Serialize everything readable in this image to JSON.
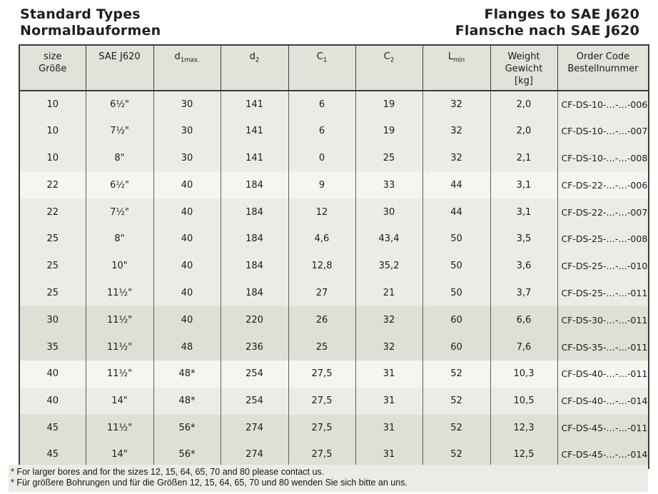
{
  "titles": {
    "left1": "Standard Types",
    "left2": "Normalbauformen",
    "right1": "Flanges to SAE J620",
    "right2": "Flansche nach SAE J620"
  },
  "table": {
    "columns": [
      {
        "line1": "size",
        "line2": "Größe"
      },
      {
        "line1": "SAE J620"
      },
      {
        "base": "d",
        "sub": "1max."
      },
      {
        "base": "d",
        "sub": "2"
      },
      {
        "base": "C",
        "sub": "1"
      },
      {
        "base": "C",
        "sub": "2"
      },
      {
        "base": "L",
        "sub": "min"
      },
      {
        "line1": "Weight",
        "line2": "Gewicht",
        "line3": "[kg]"
      },
      {
        "line1": "Order Code",
        "line2": "Bestellnummer"
      }
    ],
    "rows": [
      {
        "size": "10",
        "sae": "6½\"",
        "d1max": "30",
        "d2": "141",
        "c1": "6",
        "c2": "19",
        "lmin": "32",
        "weight": "2,0",
        "order": "CF-DS-10-…-…-006",
        "shade": "light"
      },
      {
        "size": "10",
        "sae": "7½\"",
        "d1max": "30",
        "d2": "141",
        "c1": "6",
        "c2": "19",
        "lmin": "32",
        "weight": "2,0",
        "order": "CF-DS-10-…-…-007",
        "shade": "light"
      },
      {
        "size": "10",
        "sae": "8\"",
        "d1max": "30",
        "d2": "141",
        "c1": "0",
        "c2": "25",
        "lmin": "32",
        "weight": "2,1",
        "order": "CF-DS-10-…-…-008",
        "shade": "light"
      },
      {
        "size": "22",
        "sae": "6½\"",
        "d1max": "40",
        "d2": "184",
        "c1": "9",
        "c2": "33",
        "lmin": "44",
        "weight": "3,1",
        "order": "CF-DS-22-…-…-006",
        "shade": "white"
      },
      {
        "size": "22",
        "sae": "7½\"",
        "d1max": "40",
        "d2": "184",
        "c1": "12",
        "c2": "30",
        "lmin": "44",
        "weight": "3,1",
        "order": "CF-DS-22-…-…-007",
        "shade": "light"
      },
      {
        "size": "25",
        "sae": "8\"",
        "d1max": "40",
        "d2": "184",
        "c1": "4,6",
        "c2": "43,4",
        "lmin": "50",
        "weight": "3,5",
        "order": "CF-DS-25-…-…-008",
        "shade": "light"
      },
      {
        "size": "25",
        "sae": "10\"",
        "d1max": "40",
        "d2": "184",
        "c1": "12,8",
        "c2": "35,2",
        "lmin": "50",
        "weight": "3,6",
        "order": "CF-DS-25-…-…-010",
        "shade": "light"
      },
      {
        "size": "25",
        "sae": "11½\"",
        "d1max": "40",
        "d2": "184",
        "c1": "27",
        "c2": "21",
        "lmin": "50",
        "weight": "3,7",
        "order": "CF-DS-25-…-…-011",
        "shade": "light"
      },
      {
        "size": "30",
        "sae": "11½\"",
        "d1max": "40",
        "d2": "220",
        "c1": "26",
        "c2": "32",
        "lmin": "60",
        "weight": "6,6",
        "order": "CF-DS-30-…-…-011",
        "shade": "dark"
      },
      {
        "size": "35",
        "sae": "11½\"",
        "d1max": "48",
        "d2": "236",
        "c1": "25",
        "c2": "32",
        "lmin": "60",
        "weight": "7,6",
        "order": "CF-DS-35-…-…-011",
        "shade": "dark"
      },
      {
        "size": "40",
        "sae": "11½\"",
        "d1max": "48*",
        "d2": "254",
        "c1": "27,5",
        "c2": "31",
        "lmin": "52",
        "weight": "10,3",
        "order": "CF-DS-40-…-…-011",
        "shade": "white"
      },
      {
        "size": "40",
        "sae": "14\"",
        "d1max": "48*",
        "d2": "254",
        "c1": "27,5",
        "c2": "31",
        "lmin": "52",
        "weight": "10,5",
        "order": "CF-DS-40-…-…-014",
        "shade": "light"
      },
      {
        "size": "45",
        "sae": "11½\"",
        "d1max": "56*",
        "d2": "274",
        "c1": "27,5",
        "c2": "31",
        "lmin": "52",
        "weight": "12,3",
        "order": "CF-DS-45-…-…-011",
        "shade": "dark"
      },
      {
        "size": "45",
        "sae": "14\"",
        "d1max": "56*",
        "d2": "274",
        "c1": "27,5",
        "c2": "31",
        "lmin": "52",
        "weight": "12,5",
        "order": "CF-DS-45-…-…-014",
        "shade": "dark"
      }
    ]
  },
  "footnotes": [
    "* For larger bores and for the sizes 12, 15, 64, 65, 70 and 80 please contact us.",
    "* Für größere Bohrungen und für die Größen 12, 15, 64, 65, 70 und 80 wenden Sie sich bitte an uns."
  ],
  "colors": {
    "header_bg": "#dfe3da",
    "row_shade_light": "#e9ede6",
    "row_shade_white": "#f4f6f2",
    "row_shade_dark": "#dce0d5",
    "footnote_bg": "#e9ede6",
    "border_dark": "#3c3c3c",
    "border_cell": "#5f5f5f",
    "text": "#1c1c1c"
  }
}
